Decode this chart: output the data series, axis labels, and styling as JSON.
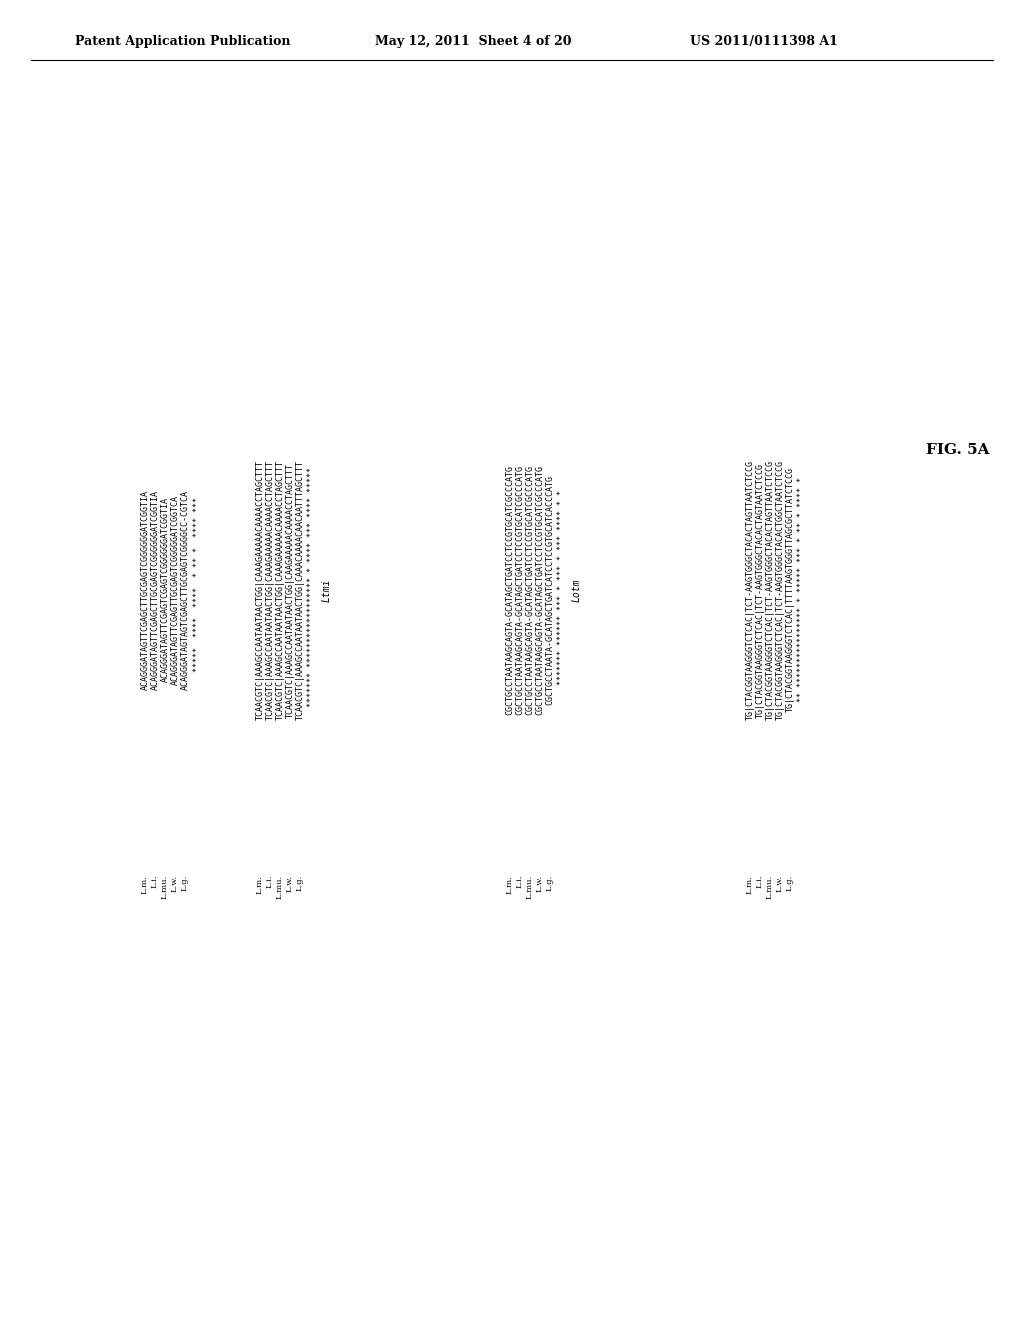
{
  "header_left": "Patent Application Publication",
  "header_mid": "May 12, 2011  Sheet 4 of 20",
  "header_right": "US 2011/0111398 A1",
  "fig_label": "FIG. 5A",
  "species_labels": [
    "L. m.",
    "L. i.",
    "L. mu.",
    "L. w.",
    "L. g."
  ],
  "block1_sequences": [
    "ACAGGGATAGTTCGAGCTTGCGAGTCGGGGGGATCGGTIA",
    "ACAGGGATAGTTCGAGCTTGCGAGTCGGGGGGATCGGTIA",
    "ACAGGGATAGTTCGAGTCGAGTCGGGGGGATCGGTIA",
    "ACAGGGATAGTTCGAGTTGCGAGTCGGGGGATCGGTCA",
    "ACAGGGATAGTAGTCGAGCTTGCGAGTCGGGGCC-CGTCA"
  ],
  "block1_stars": "  *****  ****  ****  * ** *  **** ***",
  "block2_sequences": [
    "TCAACGTC|AAAGCCAATAATAACTGG|CAAAGAAAAACAAAACCTAGCTTT",
    "TCAACGTC|AAAGCCAATAATAACTGG|CAAAGAAAAACAAAACCTAGCTTT",
    "TCAACGTC|AAAGCCAATAATAACTGG|CAAAGAAAAACAAAACCTAGCTTT",
    "TCAACGTC|AAAGCCAATAATAACTGG|CAAGAAAAACAAAACCTAGCTTT",
    "TCAACGTC|AAAGCCAATAATAACTGG|CAAACAAAACAACAATTTAGCTTT"
  ],
  "block2_stars": " ******* ****************** * **** *** **** *****",
  "block2_label": "Ltmi",
  "block3_sequences": [
    "CGCTGCCTAATAAGCAGTA-GCATAGCTGATCCTCCGTGCATCGCCCATG",
    "CGCTGCCTAATAAGCAGTA-GCATAGCTGATCCTCCGTGCATCGCCCATG",
    "CGCTGCCTAATAAGCAGTA-GCATAGCTGATCCTCCGTGCATCGCCCATG",
    "CGCTGCCTAATAAGCAGTA-GCATAGCTGATCCTCCGTGCATCGCCCATG",
    "CGCTGCCTAATA-GCATAGCTGATCATCCTCCGTGCATCACCCATG"
  ],
  "block3_stars": " ******* ****** *** * *** * *** **** * *",
  "block3_label": "Lotm",
  "block4_sequences": [
    "TG|CTACGGTAAGGGTCTCAC|TCT-AAGTGGGCTACACTAGTTAATCTCCG",
    "TG|CTACGGTAAGGGTCTCAC|TCT-AAGTGGGCTACACTAGTAATCTCCG",
    "TG|CTACGGTAAGGGTCTCAC|TCT-AAGTGGGCTACACTAGTTAATCTCCG",
    "TG|CTACGGTAAGGGTCTCAC|TCT-AAGTGGGCTACACTGGCTAATCTCCG",
    "TG|CTACGGTAAGGGTCTCAC|TTTTAAGTGGGTTAGCGCTTATCTCCG"
  ],
  "block4_stars": "** **************** * ***** *** * ** * **** *"
}
